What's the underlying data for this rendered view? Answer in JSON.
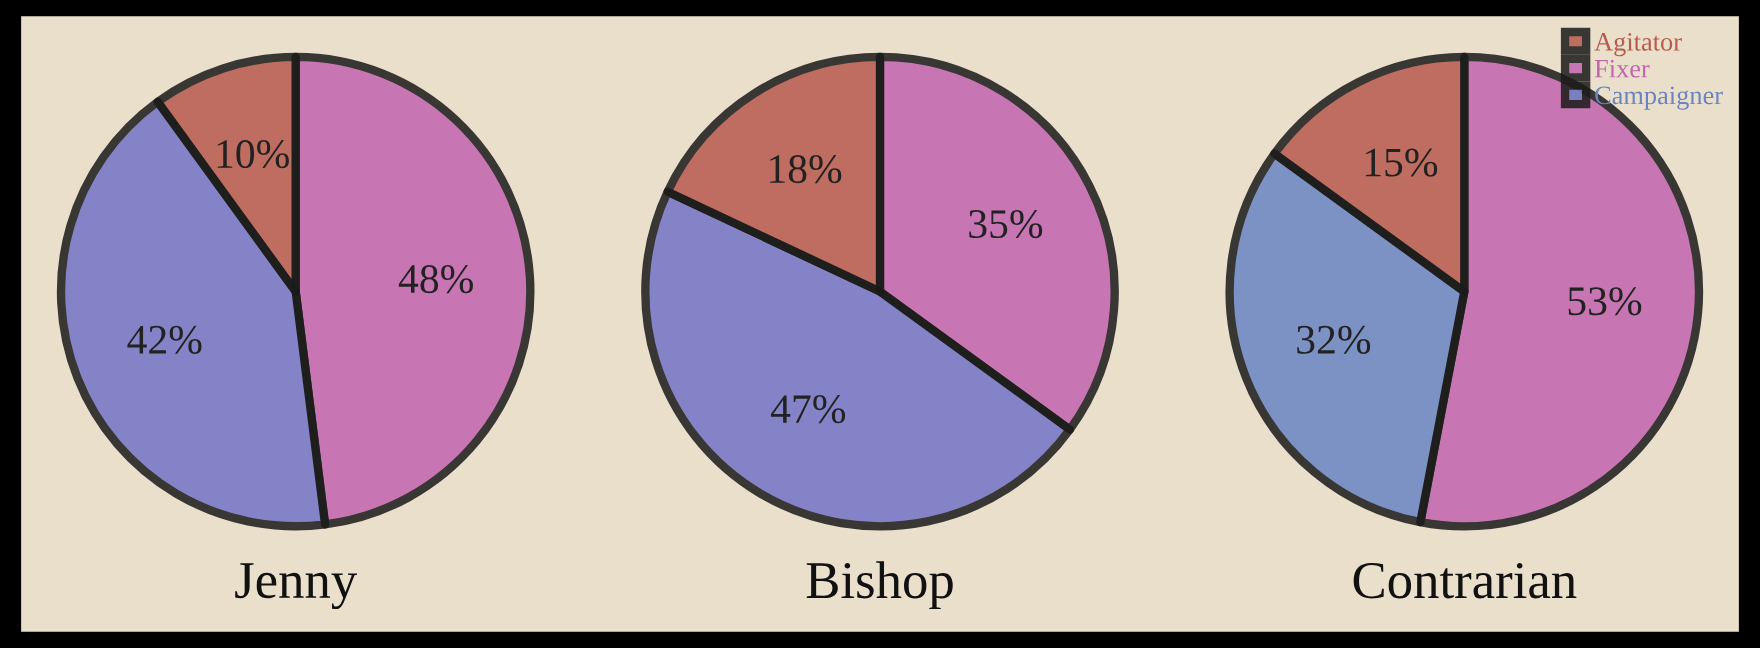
{
  "chart_data": [
    {
      "type": "pie",
      "title": "Jenny",
      "categories": [
        null,
        null,
        null
      ],
      "values": [
        10,
        48,
        42
      ],
      "colors": [
        "#b85a4e",
        "#c264b0",
        "#7474c8"
      ],
      "value_labels": [
        "10%",
        "48%",
        "42%"
      ],
      "legend": false
    },
    {
      "type": "pie",
      "title": "Bishop",
      "categories": [
        null,
        null,
        null
      ],
      "values": [
        18,
        35,
        47
      ],
      "colors": [
        "#b85a4e",
        "#c264b0",
        "#7474c8"
      ],
      "value_labels": [
        "18%",
        "35%",
        "47%"
      ],
      "legend": false
    },
    {
      "type": "pie",
      "title": "Contrarian",
      "categories": [
        "Agitator",
        "Fixer",
        "Campaigner"
      ],
      "values": [
        15,
        53,
        32
      ],
      "colors": [
        "#b85a4e",
        "#c264b0",
        "#6a84c4"
      ],
      "value_labels": [
        "15%",
        "53%",
        "32%"
      ],
      "legend": "top right"
    }
  ]
}
